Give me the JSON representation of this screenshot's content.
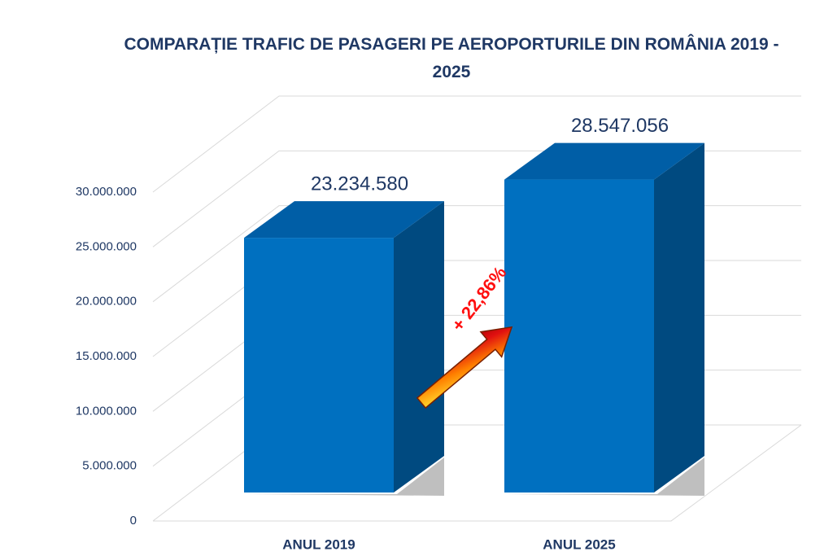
{
  "chart_data": {
    "type": "bar3d",
    "title": "COMPARAȚIE TRAFIC DE PASAGERI PE AEROPORTURILE DIN ROMÂNIA 2019 - 2025",
    "categories": [
      "ANUL 2019",
      "ANUL 2025"
    ],
    "values": [
      23234580,
      28547056
    ],
    "value_labels": [
      "23.234.580",
      "28.547.056"
    ],
    "color": "#0070c0",
    "ylim": [
      0,
      30000000
    ],
    "yticks": [
      0,
      {
        "value": 5000000,
        "label": "5.000.000"
      },
      {
        "value": 10000000,
        "label": "10.000.000"
      },
      {
        "value": 15000000,
        "label": "15.000.000"
      },
      {
        "value": 20000000,
        "label": "20.000.000"
      },
      {
        "value": 25000000,
        "label": "25.000.000"
      },
      {
        "value": 30000000,
        "label": "30.000.000"
      }
    ],
    "grid": true,
    "annotation": "+ 22,86%"
  }
}
